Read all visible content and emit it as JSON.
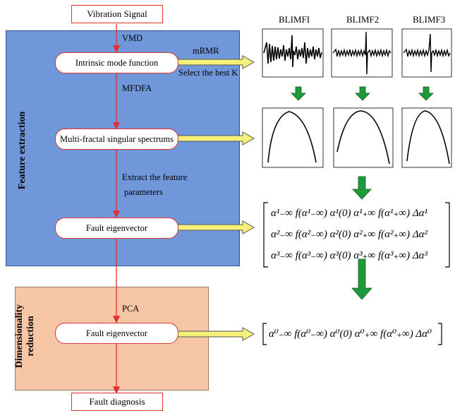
{
  "top_box": "Vibration Signal",
  "bottom_box": "Fault diagnosis",
  "feature_panel_label": "Feature extraction",
  "dim_panel_label_1": "Dimensionality",
  "dim_panel_label_2": "reduction",
  "step_labels": {
    "vmd": "VMD",
    "mrmr": "mRMR",
    "select_k": "Select the best K",
    "mfdfa": "MFDFA",
    "extract_1": "Extract the feature",
    "extract_2": "parameters",
    "pca": "PCA"
  },
  "nodes": {
    "imf": "Intrinsic mode function",
    "spectrum": "Multi-fractal singular spectrums",
    "fault_vec_1": "Fault eigenvector",
    "fault_vec_2": "Fault eigenvector"
  },
  "signal_titles": [
    "BLIMFI",
    "BLIMF2",
    "BLIMF3"
  ],
  "matrix_rows": [
    "α¹₋∞  f(α¹₋∞)  α¹(0)  α¹₊∞  f(α¹₊∞)  Δα¹",
    "α²₋∞  f(α²₋∞)  α²(0)  α²₊∞  f(α²₊∞)  Δα²",
    "α³₋∞  f(α³₋∞)  α³(0)  α³₊∞  f(α³₊∞)  Δα³"
  ],
  "reduced_vector": "α⁰₋∞  f(α⁰₋∞)  α⁰(0)  α⁰₊∞  f(α⁰₊∞)  Δα⁰",
  "colors": {
    "flow_red": "#e0302e",
    "green_arrow": "#1f9a3a",
    "yellow_arrow": "#f5f07a",
    "blue_panel": "#6f97d9",
    "orange_panel": "#f7c6a7"
  }
}
